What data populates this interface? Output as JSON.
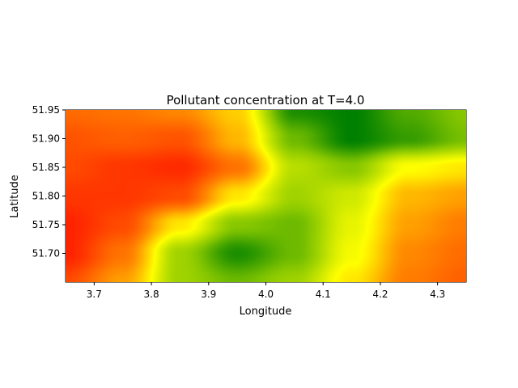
{
  "chart_data": {
    "type": "heatmap",
    "title": "Pollutant concentration at T=4.0",
    "xlabel": "Longitude",
    "ylabel": "Latitude",
    "xlim": [
      3.65,
      4.35
    ],
    "ylim": [
      51.65,
      51.95
    ],
    "x_ticks": [
      3.7,
      3.8,
      3.9,
      4.0,
      4.1,
      4.2,
      4.3
    ],
    "x_tick_labels": [
      "3.7",
      "3.8",
      "3.9",
      "4.0",
      "4.1",
      "4.2",
      "4.3"
    ],
    "y_ticks": [
      51.7,
      51.75,
      51.8,
      51.85,
      51.9,
      51.95
    ],
    "y_tick_labels": [
      "51.70",
      "51.75",
      "51.80",
      "51.85",
      "51.90",
      "51.95"
    ],
    "grid": false,
    "colormap": [
      "#ff2200",
      "#ff8800",
      "#ffff00",
      "#88c800",
      "#008000"
    ],
    "value_range": [
      0,
      1
    ],
    "value_meaning": "0 = red, 1 = green",
    "grid_x": [
      3.65,
      3.75,
      3.85,
      3.95,
      4.05,
      4.15,
      4.25,
      4.35
    ],
    "grid_y": [
      51.95,
      51.9,
      51.85,
      51.8,
      51.75,
      51.7,
      51.65
    ],
    "z": [
      [
        0.18,
        0.2,
        0.25,
        0.4,
        0.95,
        1.0,
        0.85,
        0.75
      ],
      [
        0.12,
        0.15,
        0.12,
        0.35,
        0.8,
        1.0,
        0.9,
        0.78
      ],
      [
        0.1,
        0.05,
        0.02,
        0.2,
        0.65,
        0.75,
        0.5,
        0.45
      ],
      [
        0.05,
        0.05,
        0.1,
        0.45,
        0.7,
        0.6,
        0.35,
        0.3
      ],
      [
        0.0,
        0.1,
        0.45,
        0.75,
        0.8,
        0.55,
        0.3,
        0.22
      ],
      [
        0.0,
        0.2,
        0.7,
        0.95,
        0.8,
        0.52,
        0.25,
        0.18
      ],
      [
        0.1,
        0.3,
        0.7,
        0.8,
        0.7,
        0.45,
        0.22,
        0.15
      ]
    ]
  }
}
